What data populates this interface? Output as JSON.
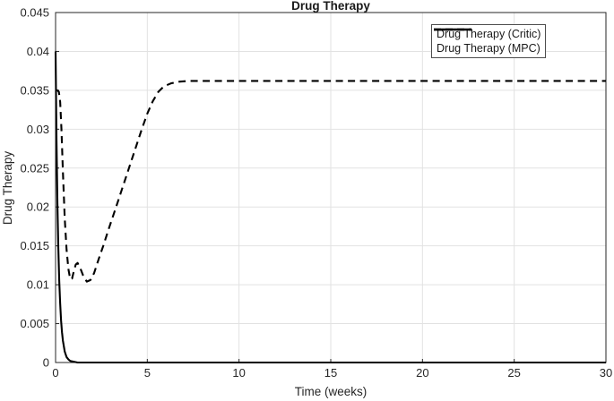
{
  "figure": {
    "title": "Drug Therapy",
    "xlabel": "Time (weeks)",
    "ylabel": "Drug Therapy"
  },
  "legend": {
    "position": "top-right",
    "entries": [
      {
        "id": "critic",
        "label": "Drug Therapy (Critic)",
        "line_style": "solid"
      },
      {
        "id": "mpc",
        "label": "Drug Therapy (MPC)",
        "line_style": "dashed"
      }
    ]
  },
  "colors": {
    "line": "#000000",
    "grid": "#e2e2e2",
    "axis": "#262626",
    "background": "#ffffff",
    "legend_border": "#4d4d4d"
  },
  "chart_data": {
    "type": "line",
    "title": "Drug Therapy",
    "xlabel": "Time (weeks)",
    "ylabel": "Drug Therapy",
    "xlim": [
      0,
      30
    ],
    "ylim": [
      0,
      0.045
    ],
    "grid": true,
    "box": true,
    "legend_position": "top-right",
    "xticks": {
      "values": [
        0,
        5,
        10,
        15,
        20,
        25,
        30
      ],
      "labels": [
        "0",
        "5",
        "10",
        "15",
        "20",
        "25",
        "30"
      ]
    },
    "yticks": {
      "values": [
        0,
        0.005,
        0.01,
        0.015,
        0.02,
        0.025,
        0.03,
        0.035,
        0.04,
        0.045
      ],
      "labels": [
        "0",
        "0.005",
        "0.01",
        "0.015",
        "0.02",
        "0.025",
        "0.03",
        "0.035",
        "0.04",
        "0.045"
      ]
    },
    "series": [
      {
        "id": "critic",
        "name": "Drug Therapy (Critic)",
        "line_style": "solid",
        "color": "#000000",
        "x": [
          0,
          0.05,
          0.1,
          0.15,
          0.2,
          0.25,
          0.3,
          0.35,
          0.4,
          0.5,
          0.6,
          0.7,
          0.8,
          1.0,
          1.2,
          1.5,
          2,
          3,
          5,
          10,
          15,
          20,
          25,
          30
        ],
        "y": [
          0.04,
          0.0287,
          0.0205,
          0.0147,
          0.0105,
          0.0076,
          0.0054,
          0.0039,
          0.0028,
          0.0014,
          0.0007,
          0.0004,
          0.0002,
          0.0001,
          0,
          0,
          0,
          0,
          0,
          0,
          0,
          0,
          0,
          0
        ]
      },
      {
        "id": "mpc",
        "name": "Drug Therapy (MPC)",
        "line_style": "dashed",
        "color": "#000000",
        "x": [
          0,
          0.1,
          0.18,
          0.25,
          0.32,
          0.4,
          0.5,
          0.6,
          0.7,
          0.8,
          0.9,
          1.0,
          1.1,
          1.2,
          1.35,
          1.5,
          1.7,
          1.9,
          2.1,
          2.35,
          2.6,
          2.9,
          3.3,
          3.65,
          4.0,
          4.35,
          4.7,
          5.0,
          5.3,
          5.6,
          5.9,
          6.3,
          6.7,
          7.2,
          8.0,
          10,
          15,
          20,
          25,
          30
        ],
        "y": [
          0.035,
          0.035,
          0.0348,
          0.0335,
          0.03,
          0.0245,
          0.0185,
          0.0145,
          0.012,
          0.0107,
          0.0108,
          0.0118,
          0.0126,
          0.0128,
          0.0121,
          0.0112,
          0.0104,
          0.0106,
          0.0115,
          0.0133,
          0.015,
          0.0172,
          0.02,
          0.0225,
          0.025,
          0.0275,
          0.03,
          0.032,
          0.0336,
          0.0348,
          0.0355,
          0.0359,
          0.0361,
          0.0362,
          0.0362,
          0.0362,
          0.0362,
          0.0362,
          0.0362,
          0.0362
        ]
      }
    ]
  }
}
